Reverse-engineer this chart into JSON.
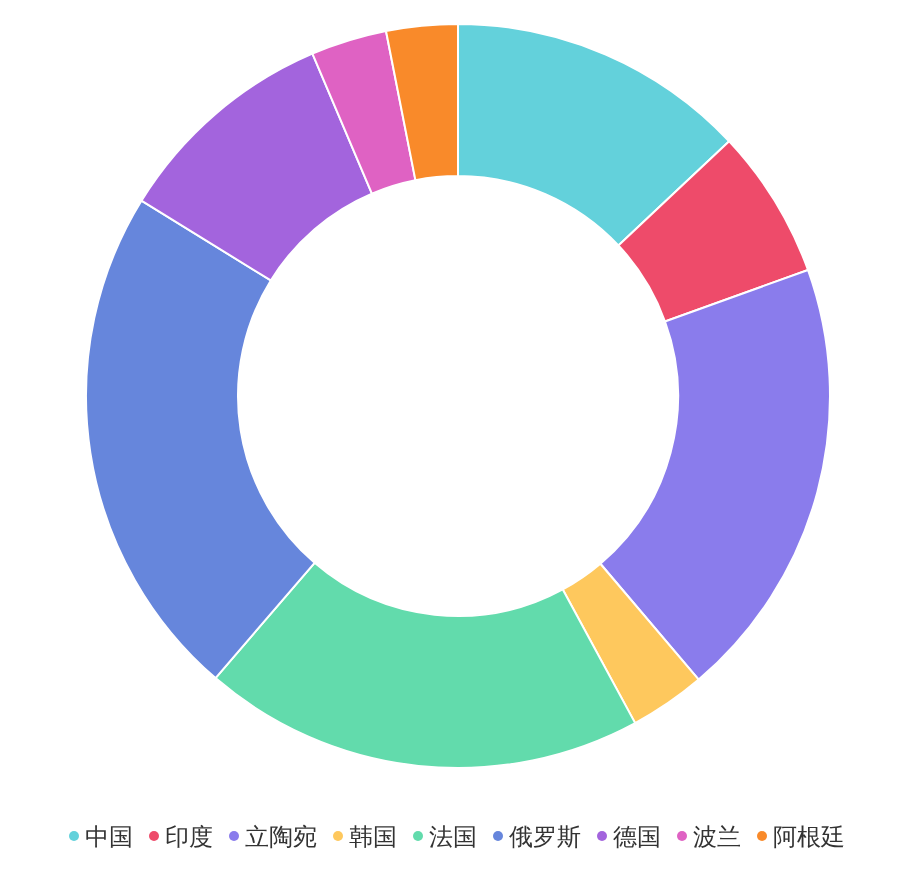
{
  "chart_data": {
    "type": "donut",
    "legend": "bottom",
    "categories": [
      "中国",
      "印度",
      "立陶宛",
      "韩国",
      "法国",
      "俄罗斯",
      "德国",
      "波兰",
      "阿根廷"
    ],
    "values": [
      13,
      6.5,
      19.3,
      3.3,
      19.2,
      22.5,
      9.8,
      3.3,
      3.1
    ],
    "colors": [
      "#63d1db",
      "#ee4b6a",
      "#8a7cec",
      "#fec85d",
      "#62dbac",
      "#6686dc",
      "#a364dd",
      "#df62c3",
      "#f98a2a"
    ]
  }
}
